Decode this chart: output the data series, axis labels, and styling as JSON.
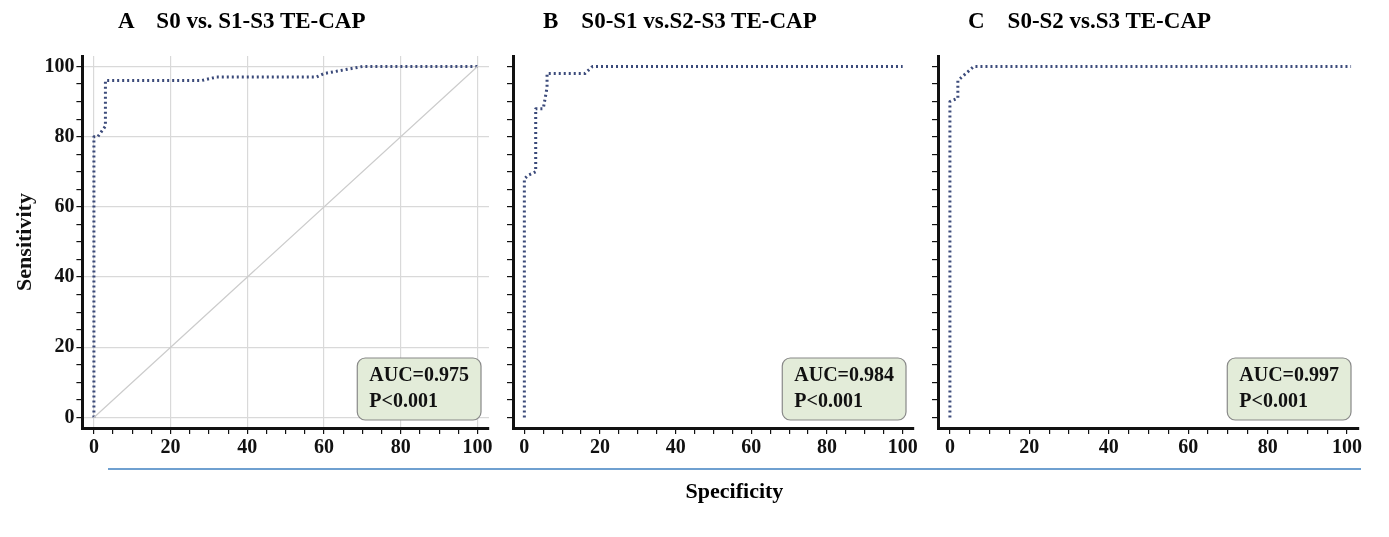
{
  "chart_data": [
    {
      "type": "line",
      "title": "A    S0 vs. S1-S3 TE-CAP",
      "ylabel": "Sensitivity",
      "xlim": [
        -3,
        103
      ],
      "ylim": [
        -3,
        103
      ],
      "xticks": [
        0,
        {
          "value": 5,
          "label": null
        },
        {
          "value": 10,
          "label": null
        },
        {
          "value": 15,
          "label": null
        },
        20,
        {
          "value": 25,
          "label": null
        },
        {
          "value": 30,
          "label": null
        },
        {
          "value": 35,
          "label": null
        },
        40,
        {
          "value": 45,
          "label": null
        },
        {
          "value": 50,
          "label": null
        },
        {
          "value": 55,
          "label": null
        },
        60,
        {
          "value": 65,
          "label": null
        },
        {
          "value": 70,
          "label": null
        },
        {
          "value": 75,
          "label": null
        },
        80,
        {
          "value": 85,
          "label": null
        },
        {
          "value": 90,
          "label": null
        },
        {
          "value": 95,
          "label": null
        },
        100
      ],
      "yticks": [
        0,
        {
          "value": 5,
          "label": null
        },
        {
          "value": 10,
          "label": null
        },
        {
          "value": 15,
          "label": null
        },
        20,
        {
          "value": 25,
          "label": null
        },
        {
          "value": 30,
          "label": null
        },
        {
          "value": 35,
          "label": null
        },
        40,
        {
          "value": 45,
          "label": null
        },
        {
          "value": 50,
          "label": null
        },
        {
          "value": 55,
          "label": null
        },
        60,
        {
          "value": 65,
          "label": null
        },
        {
          "value": 70,
          "label": null
        },
        {
          "value": 75,
          "label": null
        },
        80,
        {
          "value": 85,
          "label": null
        },
        {
          "value": 90,
          "label": null
        },
        {
          "value": 95,
          "label": null
        },
        100
      ],
      "grid": true,
      "marker": "none",
      "line_style": "dotted",
      "annotations": [
        "AUC=0.975",
        "P<0.001"
      ],
      "series": [
        {
          "color": "#3b4a7a",
          "x": [
            0,
            0,
            1,
            3,
            3,
            28,
            32,
            58,
            60,
            65,
            70,
            100
          ],
          "values": [
            0,
            80,
            80,
            83,
            96,
            96,
            97,
            97,
            98,
            99,
            100,
            100
          ]
        },
        {
          "type": "line",
          "color": "#cccccc",
          "line_style": "solid",
          "x": [
            0,
            100
          ],
          "values": [
            0,
            100
          ]
        }
      ]
    },
    {
      "type": "line",
      "title": "B    S0-S1 vs.S2-S3 TE-CAP",
      "xlabel": "Specificity",
      "xlim": [
        -3,
        103
      ],
      "ylim": [
        -3,
        103
      ],
      "tick_labels": "x",
      "xticks": [
        0,
        {
          "value": 5,
          "label": null
        },
        {
          "value": 10,
          "label": null
        },
        {
          "value": 15,
          "label": null
        },
        20,
        {
          "value": 25,
          "label": null
        },
        {
          "value": 30,
          "label": null
        },
        {
          "value": 35,
          "label": null
        },
        40,
        {
          "value": 45,
          "label": null
        },
        {
          "value": 50,
          "label": null
        },
        {
          "value": 55,
          "label": null
        },
        60,
        {
          "value": 65,
          "label": null
        },
        {
          "value": 70,
          "label": null
        },
        {
          "value": 75,
          "label": null
        },
        80,
        {
          "value": 85,
          "label": null
        },
        {
          "value": 90,
          "label": null
        },
        {
          "value": 95,
          "label": null
        },
        100
      ],
      "yticks": [
        {
          "value": 0,
          "label": null
        },
        {
          "value": 5,
          "label": null
        },
        {
          "value": 10,
          "label": null
        },
        {
          "value": 15,
          "label": null
        },
        {
          "value": 20,
          "label": null
        },
        {
          "value": 25,
          "label": null
        },
        {
          "value": 30,
          "label": null
        },
        {
          "value": 35,
          "label": null
        },
        {
          "value": 40,
          "label": null
        },
        {
          "value": 45,
          "label": null
        },
        {
          "value": 50,
          "label": null
        },
        {
          "value": 55,
          "label": null
        },
        {
          "value": 60,
          "label": null
        },
        {
          "value": 65,
          "label": null
        },
        {
          "value": 70,
          "label": null
        },
        {
          "value": 75,
          "label": null
        },
        {
          "value": 80,
          "label": null
        },
        {
          "value": 85,
          "label": null
        },
        {
          "value": 90,
          "label": null
        },
        {
          "value": 95,
          "label": null
        },
        {
          "value": 100,
          "label": null
        }
      ],
      "marker": "none",
      "line_style": "dotted",
      "annotations": [
        "AUC=0.984",
        "P<0.001"
      ],
      "series": [
        {
          "color": "#3b4a7a",
          "x": [
            0,
            0,
            1,
            3,
            3,
            5,
            6,
            6,
            16,
            18,
            100
          ],
          "values": [
            0,
            68,
            69,
            70,
            88,
            88,
            94,
            98,
            98,
            100,
            100
          ]
        }
      ]
    },
    {
      "type": "line",
      "title": "C    S0-S2 vs.S3 TE-CAP",
      "xlim": [
        -3,
        103
      ],
      "ylim": [
        -3,
        103
      ],
      "tick_labels": "x",
      "xticks": [
        0,
        {
          "value": 5,
          "label": null
        },
        {
          "value": 10,
          "label": null
        },
        {
          "value": 15,
          "label": null
        },
        20,
        {
          "value": 25,
          "label": null
        },
        {
          "value": 30,
          "label": null
        },
        {
          "value": 35,
          "label": null
        },
        40,
        {
          "value": 45,
          "label": null
        },
        {
          "value": 50,
          "label": null
        },
        {
          "value": 55,
          "label": null
        },
        60,
        {
          "value": 65,
          "label": null
        },
        {
          "value": 70,
          "label": null
        },
        {
          "value": 75,
          "label": null
        },
        80,
        {
          "value": 85,
          "label": null
        },
        {
          "value": 90,
          "label": null
        },
        {
          "value": 95,
          "label": null
        },
        100
      ],
      "yticks": [
        {
          "value": 0,
          "label": null
        },
        {
          "value": 5,
          "label": null
        },
        {
          "value": 10,
          "label": null
        },
        {
          "value": 15,
          "label": null
        },
        {
          "value": 20,
          "label": null
        },
        {
          "value": 25,
          "label": null
        },
        {
          "value": 30,
          "label": null
        },
        {
          "value": 35,
          "label": null
        },
        {
          "value": 40,
          "label": null
        },
        {
          "value": 45,
          "label": null
        },
        {
          "value": 50,
          "label": null
        },
        {
          "value": 55,
          "label": null
        },
        {
          "value": 60,
          "label": null
        },
        {
          "value": 65,
          "label": null
        },
        {
          "value": 70,
          "label": null
        },
        {
          "value": 75,
          "label": null
        },
        {
          "value": 80,
          "label": null
        },
        {
          "value": 85,
          "label": null
        },
        {
          "value": 90,
          "label": null
        },
        {
          "value": 95,
          "label": null
        },
        {
          "value": 100,
          "label": null
        }
      ],
      "marker": "none",
      "line_style": "dotted",
      "annotations": [
        "AUC=0.997",
        "P<0.001"
      ],
      "series": [
        {
          "color": "#3b4a7a",
          "x": [
            0,
            0,
            2,
            2,
            4,
            6,
            101
          ],
          "values": [
            0,
            90,
            91,
            96,
            98,
            100,
            100
          ]
        }
      ]
    }
  ]
}
